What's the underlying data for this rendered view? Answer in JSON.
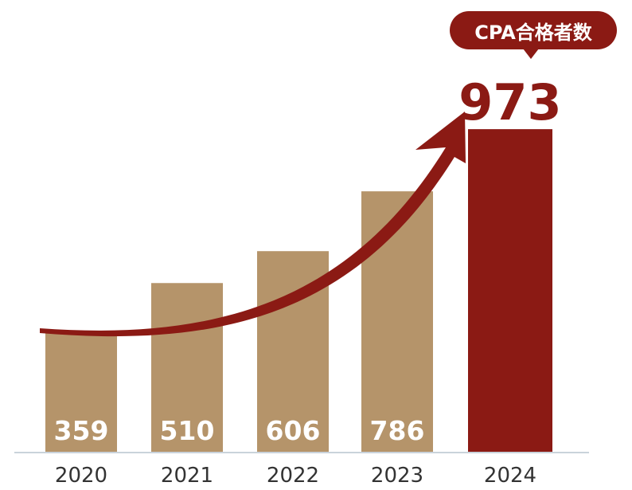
{
  "chart_data": {
    "type": "bar",
    "categories": [
      "2020",
      "2021",
      "2022",
      "2023",
      "2024"
    ],
    "values": [
      359,
      510,
      606,
      786,
      973
    ],
    "highlight_index": 4,
    "highlight_label": "CPA合格者数",
    "ylim": [
      0,
      1050
    ],
    "grid": false,
    "legend": "none",
    "colors": {
      "bar": "#b5946a",
      "highlight": "#8b1a14",
      "arrow": "#8b1a14",
      "value_text_on_bar": "#ffffff",
      "axis_text": "#333333",
      "baseline": "#c9d3db"
    }
  }
}
